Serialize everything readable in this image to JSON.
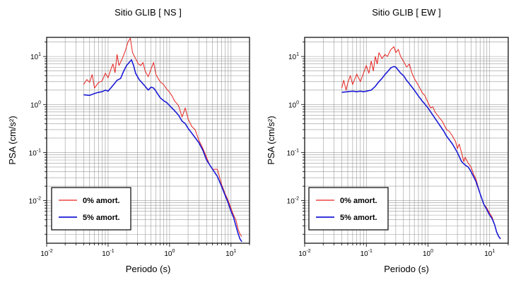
{
  "chart_data": [
    {
      "type": "line",
      "title": "Sitio GLIB [ NS ]",
      "xlabel": "Periodo (s)",
      "ylabel": "PSA (cm/s²)",
      "xscale": "log",
      "yscale": "log",
      "xlim": [
        0.01,
        20
      ],
      "ylim": [
        0.0013,
        25
      ],
      "xticks": [
        {
          "value": 0.01,
          "base": "10",
          "exp": "-2"
        },
        {
          "value": 0.1,
          "base": "10",
          "exp": "-1"
        },
        {
          "value": 1,
          "base": "10",
          "exp": "0"
        },
        {
          "value": 10,
          "base": "10",
          "exp": "1"
        }
      ],
      "yticks": [
        {
          "value": 0.01,
          "base": "10",
          "exp": "-2"
        },
        {
          "value": 0.1,
          "base": "10",
          "exp": "-1"
        },
        {
          "value": 1,
          "base": "10",
          "exp": "0"
        },
        {
          "value": 10,
          "base": "10",
          "exp": "1"
        }
      ],
      "grid": true,
      "legend_position": "bottom-left",
      "series": [
        {
          "name": "0% amort.",
          "color": "#e8231f",
          "points": [
            [
              0.04,
              2.6
            ],
            [
              0.045,
              3.3
            ],
            [
              0.05,
              2.9
            ],
            [
              0.055,
              4.2
            ],
            [
              0.06,
              2.2
            ],
            [
              0.07,
              2.9
            ],
            [
              0.08,
              3.1
            ],
            [
              0.09,
              4.5
            ],
            [
              0.1,
              3.6
            ],
            [
              0.11,
              5.2
            ],
            [
              0.12,
              7.0
            ],
            [
              0.13,
              4.6
            ],
            [
              0.14,
              11.0
            ],
            [
              0.15,
              6.5
            ],
            [
              0.17,
              9.0
            ],
            [
              0.19,
              13.0
            ],
            [
              0.21,
              20.0
            ],
            [
              0.23,
              24.0
            ],
            [
              0.25,
              12.0
            ],
            [
              0.28,
              9.0
            ],
            [
              0.31,
              7.0
            ],
            [
              0.34,
              6.5
            ],
            [
              0.37,
              7.5
            ],
            [
              0.4,
              5.0
            ],
            [
              0.45,
              3.8
            ],
            [
              0.5,
              5.5
            ],
            [
              0.55,
              7.5
            ],
            [
              0.6,
              4.2
            ],
            [
              0.7,
              3.0
            ],
            [
              0.8,
              2.6
            ],
            [
              0.9,
              2.1
            ],
            [
              1.0,
              1.8
            ],
            [
              1.1,
              1.5
            ],
            [
              1.2,
              1.2
            ],
            [
              1.4,
              0.95
            ],
            [
              1.6,
              0.55
            ],
            [
              1.8,
              0.85
            ],
            [
              2.0,
              0.5
            ],
            [
              2.3,
              0.35
            ],
            [
              2.6,
              0.3
            ],
            [
              3.0,
              0.18
            ],
            [
              3.5,
              0.12
            ],
            [
              4.0,
              0.08
            ],
            [
              4.5,
              0.055
            ],
            [
              5.0,
              0.045
            ],
            [
              6.0,
              0.045
            ],
            [
              7.0,
              0.022
            ],
            [
              8.0,
              0.014
            ],
            [
              9.0,
              0.01
            ],
            [
              10.0,
              0.007
            ],
            [
              11.0,
              0.005
            ],
            [
              12.0,
              0.004
            ],
            [
              13.0,
              0.0026
            ],
            [
              14.0,
              0.002
            ],
            [
              15.0,
              0.0018
            ]
          ]
        },
        {
          "name": "5% amort.",
          "color": "#1a1ad6",
          "points": [
            [
              0.04,
              1.6
            ],
            [
              0.05,
              1.55
            ],
            [
              0.06,
              1.7
            ],
            [
              0.07,
              1.8
            ],
            [
              0.08,
              1.85
            ],
            [
              0.09,
              2.0
            ],
            [
              0.1,
              1.9
            ],
            [
              0.12,
              2.5
            ],
            [
              0.14,
              3.2
            ],
            [
              0.16,
              3.5
            ],
            [
              0.18,
              5.0
            ],
            [
              0.2,
              6.5
            ],
            [
              0.22,
              7.5
            ],
            [
              0.24,
              8.5
            ],
            [
              0.26,
              6.5
            ],
            [
              0.28,
              4.5
            ],
            [
              0.32,
              3.3
            ],
            [
              0.36,
              2.8
            ],
            [
              0.4,
              2.4
            ],
            [
              0.45,
              2.0
            ],
            [
              0.5,
              2.3
            ],
            [
              0.55,
              2.2
            ],
            [
              0.6,
              1.9
            ],
            [
              0.7,
              1.4
            ],
            [
              0.8,
              1.2
            ],
            [
              0.9,
              1.1
            ],
            [
              1.0,
              0.95
            ],
            [
              1.2,
              0.75
            ],
            [
              1.4,
              0.6
            ],
            [
              1.6,
              0.45
            ],
            [
              1.8,
              0.4
            ],
            [
              2.0,
              0.32
            ],
            [
              2.5,
              0.22
            ],
            [
              3.0,
              0.16
            ],
            [
              3.5,
              0.11
            ],
            [
              4.0,
              0.07
            ],
            [
              5.0,
              0.045
            ],
            [
              6.0,
              0.032
            ],
            [
              7.0,
              0.02
            ],
            [
              8.0,
              0.013
            ],
            [
              9.0,
              0.009
            ],
            [
              10.0,
              0.006
            ],
            [
              11.0,
              0.0045
            ],
            [
              12.0,
              0.003
            ],
            [
              13.0,
              0.0021
            ],
            [
              14.0,
              0.0016
            ],
            [
              15.0,
              0.0014
            ]
          ]
        }
      ]
    },
    {
      "type": "line",
      "title": "Sitio GLIB [ EW ]",
      "xlabel": "Periodo (s)",
      "ylabel": "PSA (cm/s²)",
      "xscale": "log",
      "yscale": "log",
      "xlim": [
        0.01,
        20
      ],
      "ylim": [
        0.0013,
        25
      ],
      "xticks": [
        {
          "value": 0.01,
          "base": "10",
          "exp": "-2"
        },
        {
          "value": 0.1,
          "base": "10",
          "exp": "-1"
        },
        {
          "value": 1,
          "base": "10",
          "exp": "0"
        },
        {
          "value": 10,
          "base": "10",
          "exp": "1"
        }
      ],
      "yticks": [
        {
          "value": 0.01,
          "base": "10",
          "exp": "-2"
        },
        {
          "value": 0.1,
          "base": "10",
          "exp": "-1"
        },
        {
          "value": 1,
          "base": "10",
          "exp": "0"
        },
        {
          "value": 10,
          "base": "10",
          "exp": "1"
        }
      ],
      "grid": true,
      "legend_position": "bottom-left",
      "series": [
        {
          "name": "0% amort.",
          "color": "#e8231f",
          "points": [
            [
              0.04,
              2.2
            ],
            [
              0.043,
              3.2
            ],
            [
              0.047,
              2.0
            ],
            [
              0.05,
              2.8
            ],
            [
              0.055,
              4.0
            ],
            [
              0.06,
              2.6
            ],
            [
              0.065,
              3.4
            ],
            [
              0.07,
              4.3
            ],
            [
              0.08,
              3.0
            ],
            [
              0.09,
              4.5
            ],
            [
              0.1,
              6.5
            ],
            [
              0.11,
              4.5
            ],
            [
              0.12,
              8.0
            ],
            [
              0.13,
              5.0
            ],
            [
              0.14,
              10.0
            ],
            [
              0.15,
              7.0
            ],
            [
              0.16,
              12.0
            ],
            [
              0.18,
              9.0
            ],
            [
              0.2,
              11.0
            ],
            [
              0.22,
              10.0
            ],
            [
              0.25,
              14.0
            ],
            [
              0.28,
              16.0
            ],
            [
              0.3,
              12.0
            ],
            [
              0.33,
              14.0
            ],
            [
              0.36,
              10.0
            ],
            [
              0.4,
              8.0
            ],
            [
              0.45,
              6.0
            ],
            [
              0.5,
              7.0
            ],
            [
              0.55,
              4.5
            ],
            [
              0.6,
              3.5
            ],
            [
              0.7,
              2.5
            ],
            [
              0.8,
              1.8
            ],
            [
              0.9,
              1.5
            ],
            [
              1.0,
              1.1
            ],
            [
              1.1,
              0.85
            ],
            [
              1.2,
              0.9
            ],
            [
              1.3,
              0.7
            ],
            [
              1.5,
              0.55
            ],
            [
              1.7,
              0.45
            ],
            [
              2.0,
              0.3
            ],
            [
              2.2,
              0.28
            ],
            [
              2.5,
              0.22
            ],
            [
              2.8,
              0.17
            ],
            [
              3.0,
              0.12
            ],
            [
              3.2,
              0.15
            ],
            [
              3.5,
              0.1
            ],
            [
              3.8,
              0.065
            ],
            [
              4.0,
              0.08
            ],
            [
              4.5,
              0.06
            ],
            [
              5.0,
              0.05
            ],
            [
              5.5,
              0.035
            ],
            [
              6.0,
              0.028
            ],
            [
              7.0,
              0.014
            ],
            [
              8.0,
              0.0085
            ],
            [
              9.0,
              0.007
            ],
            [
              10.0,
              0.0055
            ],
            [
              11.0,
              0.0045
            ],
            [
              12.0,
              0.0032
            ],
            [
              13.0,
              0.0022
            ],
            [
              14.0,
              0.0018
            ],
            [
              15.0,
              0.0016
            ]
          ]
        },
        {
          "name": "5% amort.",
          "color": "#1a1ad6",
          "points": [
            [
              0.04,
              1.8
            ],
            [
              0.05,
              1.85
            ],
            [
              0.06,
              1.9
            ],
            [
              0.07,
              1.85
            ],
            [
              0.08,
              1.9
            ],
            [
              0.09,
              1.85
            ],
            [
              0.1,
              1.9
            ],
            [
              0.12,
              2.0
            ],
            [
              0.14,
              2.4
            ],
            [
              0.16,
              3.0
            ],
            [
              0.18,
              3.5
            ],
            [
              0.2,
              4.2
            ],
            [
              0.22,
              4.8
            ],
            [
              0.25,
              5.8
            ],
            [
              0.28,
              6.2
            ],
            [
              0.3,
              6.0
            ],
            [
              0.33,
              5.2
            ],
            [
              0.36,
              4.5
            ],
            [
              0.4,
              4.0
            ],
            [
              0.45,
              3.2
            ],
            [
              0.5,
              2.7
            ],
            [
              0.6,
              2.0
            ],
            [
              0.7,
              1.5
            ],
            [
              0.8,
              1.2
            ],
            [
              0.9,
              1.0
            ],
            [
              1.0,
              0.85
            ],
            [
              1.2,
              0.6
            ],
            [
              1.4,
              0.45
            ],
            [
              1.6,
              0.35
            ],
            [
              1.8,
              0.28
            ],
            [
              2.0,
              0.22
            ],
            [
              2.5,
              0.15
            ],
            [
              3.0,
              0.1
            ],
            [
              3.5,
              0.065
            ],
            [
              4.0,
              0.055
            ],
            [
              4.5,
              0.05
            ],
            [
              5.0,
              0.04
            ],
            [
              6.0,
              0.025
            ],
            [
              7.0,
              0.014
            ],
            [
              8.0,
              0.0085
            ],
            [
              9.0,
              0.0065
            ],
            [
              10.0,
              0.005
            ],
            [
              11.0,
              0.0042
            ],
            [
              12.0,
              0.0032
            ],
            [
              13.0,
              0.0022
            ],
            [
              14.0,
              0.0018
            ],
            [
              15.0,
              0.0016
            ]
          ]
        }
      ]
    }
  ]
}
